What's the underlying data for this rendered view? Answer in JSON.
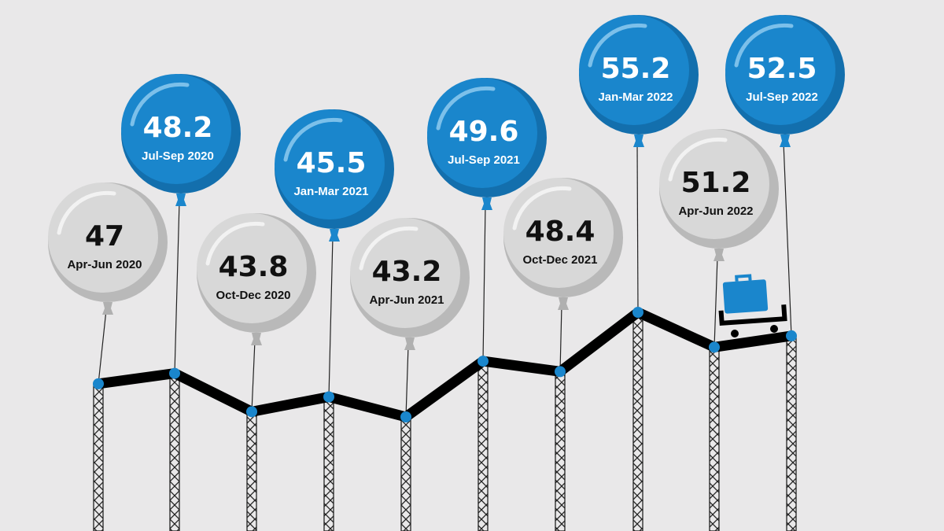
{
  "chart_data": {
    "type": "line",
    "style": "balloon infographic",
    "categories": [
      "Apr-Jun 2020",
      "Jul-Sep 2020",
      "Oct-Dec 2020",
      "Jan-Mar 2021",
      "Apr-Jun 2021",
      "Jul-Sep 2021",
      "Oct-Dec 2021",
      "Jan-Mar 2022",
      "Apr-Jun 2022",
      "Jul-Sep 2022"
    ],
    "values": [
      47,
      48.2,
      43.8,
      45.5,
      43.2,
      49.6,
      48.4,
      55.2,
      51.2,
      52.5
    ],
    "value_labels": [
      "47",
      "48.2",
      "43.8",
      "45.5",
      "43.2",
      "49.6",
      "48.4",
      "55.2",
      "51.2",
      "52.5"
    ],
    "balloon_colors": [
      "gray",
      "blue",
      "gray",
      "blue",
      "gray",
      "blue",
      "gray",
      "blue",
      "gray",
      "blue"
    ],
    "grid": false,
    "legend": "none",
    "decoration": "briefcase-on-cart-icon"
  },
  "colors": {
    "background": "#e9e8e9",
    "blue": "#1a86cc",
    "blue_shade": "#136fad",
    "gray": "#d8d8d8",
    "gray_shade": "#b9b9b9",
    "track": "#000000",
    "point": "#1a86cc"
  }
}
